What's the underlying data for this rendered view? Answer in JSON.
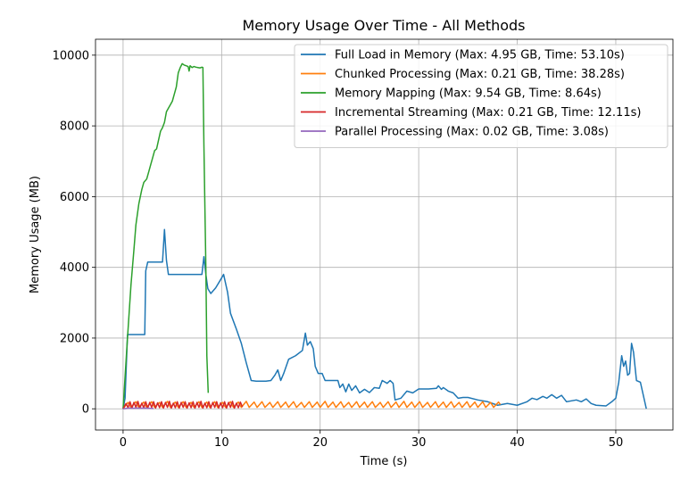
{
  "chart_data": {
    "type": "line",
    "title": "Memory Usage Over Time - All Methods",
    "xlabel": "Time (s)",
    "ylabel": "Memory Usage (MB)",
    "xlim": [
      -2.8,
      55.8
    ],
    "ylim": [
      -600,
      10450
    ],
    "xticks": [
      0,
      10,
      20,
      30,
      40,
      50
    ],
    "yticks": [
      0,
      2000,
      4000,
      6000,
      8000,
      10000
    ],
    "grid": true,
    "legend_position": "top-right",
    "series": [
      {
        "name": "Full Load in Memory (Max: 4.95 GB, Time: 53.10s)",
        "color": "#1f77b4",
        "points": [
          [
            0,
            0
          ],
          [
            0.2,
            300
          ],
          [
            0.45,
            2100
          ],
          [
            1,
            2100
          ],
          [
            2.2,
            2100
          ],
          [
            2.3,
            3900
          ],
          [
            2.5,
            4150
          ],
          [
            3.5,
            4150
          ],
          [
            4.0,
            4150
          ],
          [
            4.2,
            5070
          ],
          [
            4.4,
            4200
          ],
          [
            4.6,
            3800
          ],
          [
            6,
            3800
          ],
          [
            8,
            3800
          ],
          [
            8.2,
            4300
          ],
          [
            8.4,
            3800
          ],
          [
            8.6,
            3400
          ],
          [
            8.9,
            3260
          ],
          [
            9.4,
            3420
          ],
          [
            10.0,
            3700
          ],
          [
            10.2,
            3800
          ],
          [
            10.6,
            3300
          ],
          [
            10.9,
            2700
          ],
          [
            11.5,
            2250
          ],
          [
            12.0,
            1850
          ],
          [
            12.5,
            1300
          ],
          [
            13.0,
            800
          ],
          [
            13.5,
            780
          ],
          [
            14.5,
            780
          ],
          [
            15.0,
            800
          ],
          [
            15.4,
            950
          ],
          [
            15.7,
            1100
          ],
          [
            16.0,
            800
          ],
          [
            16.3,
            1000
          ],
          [
            16.8,
            1400
          ],
          [
            17.5,
            1500
          ],
          [
            18.2,
            1650
          ],
          [
            18.5,
            2140
          ],
          [
            18.7,
            1800
          ],
          [
            19.0,
            1900
          ],
          [
            19.3,
            1700
          ],
          [
            19.5,
            1200
          ],
          [
            19.8,
            1000
          ],
          [
            20.2,
            1000
          ],
          [
            20.5,
            800
          ],
          [
            21.2,
            800
          ],
          [
            21.8,
            800
          ],
          [
            22.0,
            600
          ],
          [
            22.3,
            700
          ],
          [
            22.6,
            480
          ],
          [
            22.9,
            700
          ],
          [
            23.2,
            520
          ],
          [
            23.6,
            650
          ],
          [
            24.0,
            450
          ],
          [
            24.5,
            550
          ],
          [
            25.0,
            460
          ],
          [
            25.5,
            600
          ],
          [
            26.0,
            580
          ],
          [
            26.3,
            800
          ],
          [
            26.8,
            720
          ],
          [
            27.1,
            800
          ],
          [
            27.4,
            720
          ],
          [
            27.6,
            250
          ],
          [
            28.2,
            300
          ],
          [
            28.8,
            500
          ],
          [
            29.4,
            450
          ],
          [
            30.0,
            560
          ],
          [
            31.0,
            560
          ],
          [
            31.8,
            580
          ],
          [
            32.0,
            650
          ],
          [
            32.3,
            550
          ],
          [
            32.5,
            600
          ],
          [
            33.0,
            500
          ],
          [
            33.5,
            450
          ],
          [
            34.0,
            300
          ],
          [
            34.5,
            320
          ],
          [
            35.0,
            320
          ],
          [
            36.0,
            250
          ],
          [
            37.0,
            200
          ],
          [
            38.0,
            100
          ],
          [
            39.0,
            150
          ],
          [
            40.0,
            100
          ],
          [
            41.0,
            200
          ],
          [
            41.5,
            300
          ],
          [
            42.0,
            260
          ],
          [
            42.6,
            350
          ],
          [
            43.0,
            300
          ],
          [
            43.5,
            400
          ],
          [
            44.0,
            300
          ],
          [
            44.5,
            380
          ],
          [
            45.0,
            200
          ],
          [
            46.0,
            250
          ],
          [
            46.5,
            200
          ],
          [
            47.0,
            280
          ],
          [
            47.5,
            150
          ],
          [
            48.0,
            100
          ],
          [
            49.0,
            80
          ],
          [
            49.6,
            200
          ],
          [
            50.0,
            300
          ],
          [
            50.3,
            750
          ],
          [
            50.6,
            1500
          ],
          [
            50.8,
            1200
          ],
          [
            51.0,
            1350
          ],
          [
            51.2,
            950
          ],
          [
            51.4,
            1000
          ],
          [
            51.6,
            1850
          ],
          [
            51.8,
            1600
          ],
          [
            52.1,
            800
          ],
          [
            52.5,
            750
          ],
          [
            53.1,
            0
          ]
        ]
      },
      {
        "name": "Chunked Processing (Max: 0.21 GB, Time: 38.28s)",
        "color": "#ff7f0e",
        "points": [
          [
            0,
            0
          ],
          [
            0.5,
            180
          ],
          [
            0.8,
            40
          ],
          [
            1.3,
            200
          ],
          [
            1.6,
            40
          ],
          [
            2.1,
            190
          ],
          [
            2.4,
            40
          ],
          [
            2.9,
            200
          ],
          [
            3.2,
            40
          ],
          [
            3.7,
            180
          ],
          [
            4.0,
            40
          ],
          [
            4.5,
            210
          ],
          [
            4.8,
            40
          ],
          [
            5.3,
            190
          ],
          [
            5.6,
            40
          ],
          [
            6.1,
            200
          ],
          [
            6.4,
            40
          ],
          [
            6.9,
            180
          ],
          [
            7.2,
            40
          ],
          [
            7.7,
            200
          ],
          [
            8.0,
            40
          ],
          [
            8.5,
            190
          ],
          [
            8.8,
            40
          ],
          [
            9.3,
            200
          ],
          [
            9.6,
            40
          ],
          [
            10.1,
            180
          ],
          [
            10.4,
            40
          ],
          [
            10.9,
            200
          ],
          [
            11.2,
            40
          ],
          [
            11.7,
            190
          ],
          [
            12.0,
            40
          ],
          [
            12.5,
            210
          ],
          [
            12.8,
            40
          ],
          [
            13.3,
            190
          ],
          [
            13.6,
            40
          ],
          [
            14.1,
            200
          ],
          [
            14.4,
            40
          ],
          [
            14.9,
            180
          ],
          [
            15.2,
            40
          ],
          [
            15.7,
            200
          ],
          [
            16.0,
            40
          ],
          [
            16.5,
            190
          ],
          [
            16.8,
            40
          ],
          [
            17.3,
            200
          ],
          [
            17.6,
            40
          ],
          [
            18.1,
            180
          ],
          [
            18.4,
            40
          ],
          [
            18.9,
            200
          ],
          [
            19.2,
            40
          ],
          [
            19.7,
            190
          ],
          [
            20.0,
            40
          ],
          [
            20.5,
            210
          ],
          [
            20.8,
            40
          ],
          [
            21.3,
            190
          ],
          [
            21.6,
            40
          ],
          [
            22.1,
            200
          ],
          [
            22.4,
            40
          ],
          [
            22.9,
            180
          ],
          [
            23.2,
            40
          ],
          [
            23.7,
            200
          ],
          [
            24.0,
            40
          ],
          [
            24.5,
            190
          ],
          [
            24.8,
            40
          ],
          [
            25.3,
            200
          ],
          [
            25.6,
            40
          ],
          [
            26.1,
            180
          ],
          [
            26.4,
            40
          ],
          [
            26.9,
            200
          ],
          [
            27.2,
            40
          ],
          [
            27.7,
            190
          ],
          [
            28.0,
            40
          ],
          [
            28.5,
            210
          ],
          [
            28.8,
            40
          ],
          [
            29.3,
            190
          ],
          [
            29.6,
            40
          ],
          [
            30.1,
            200
          ],
          [
            30.4,
            40
          ],
          [
            30.9,
            180
          ],
          [
            31.2,
            40
          ],
          [
            31.7,
            200
          ],
          [
            32.0,
            40
          ],
          [
            32.5,
            190
          ],
          [
            32.8,
            40
          ],
          [
            33.3,
            200
          ],
          [
            33.6,
            40
          ],
          [
            34.1,
            180
          ],
          [
            34.4,
            40
          ],
          [
            34.9,
            200
          ],
          [
            35.2,
            40
          ],
          [
            35.7,
            190
          ],
          [
            36.0,
            40
          ],
          [
            36.5,
            200
          ],
          [
            36.8,
            40
          ],
          [
            37.3,
            180
          ],
          [
            37.6,
            40
          ],
          [
            38.1,
            190
          ],
          [
            38.28,
            120
          ]
        ]
      },
      {
        "name": "Memory Mapping (Max: 9.54 GB, Time: 8.64s)",
        "color": "#2ca02c",
        "points": [
          [
            0,
            0
          ],
          [
            0.4,
            1800
          ],
          [
            0.8,
            3500
          ],
          [
            1.1,
            4500
          ],
          [
            1.3,
            5200
          ],
          [
            1.6,
            5800
          ],
          [
            1.9,
            6200
          ],
          [
            2.1,
            6400
          ],
          [
            2.4,
            6500
          ],
          [
            2.6,
            6700
          ],
          [
            2.8,
            6900
          ],
          [
            3.0,
            7100
          ],
          [
            3.2,
            7300
          ],
          [
            3.4,
            7350
          ],
          [
            3.6,
            7600
          ],
          [
            3.8,
            7850
          ],
          [
            4.0,
            7950
          ],
          [
            4.2,
            8100
          ],
          [
            4.4,
            8400
          ],
          [
            4.6,
            8500
          ],
          [
            4.8,
            8600
          ],
          [
            5.0,
            8700
          ],
          [
            5.2,
            8900
          ],
          [
            5.4,
            9100
          ],
          [
            5.6,
            9500
          ],
          [
            5.8,
            9650
          ],
          [
            6.0,
            9760
          ],
          [
            6.2,
            9720
          ],
          [
            6.4,
            9700
          ],
          [
            6.6,
            9680
          ],
          [
            6.7,
            9550
          ],
          [
            6.8,
            9700
          ],
          [
            7.0,
            9650
          ],
          [
            7.2,
            9680
          ],
          [
            7.4,
            9660
          ],
          [
            7.6,
            9650
          ],
          [
            7.8,
            9640
          ],
          [
            8.0,
            9660
          ],
          [
            8.1,
            9650
          ],
          [
            8.2,
            7500
          ],
          [
            8.4,
            4000
          ],
          [
            8.5,
            1500
          ],
          [
            8.64,
            450
          ]
        ]
      },
      {
        "name": "Incremental Streaming (Max: 0.21 GB, Time: 12.11s)",
        "color": "#d62728",
        "points": [
          [
            0,
            0
          ],
          [
            0.3,
            150
          ],
          [
            0.5,
            30
          ],
          [
            0.7,
            200
          ],
          [
            0.9,
            20
          ],
          [
            1.1,
            180
          ],
          [
            1.3,
            40
          ],
          [
            1.5,
            210
          ],
          [
            1.7,
            20
          ],
          [
            1.9,
            160
          ],
          [
            2.1,
            30
          ],
          [
            2.3,
            200
          ],
          [
            2.5,
            20
          ],
          [
            2.7,
            180
          ],
          [
            2.9,
            40
          ],
          [
            3.1,
            200
          ],
          [
            3.3,
            20
          ],
          [
            3.5,
            170
          ],
          [
            3.7,
            30
          ],
          [
            3.9,
            200
          ],
          [
            4.1,
            20
          ],
          [
            4.3,
            180
          ],
          [
            4.5,
            40
          ],
          [
            4.7,
            210
          ],
          [
            4.9,
            20
          ],
          [
            5.1,
            160
          ],
          [
            5.3,
            30
          ],
          [
            5.5,
            200
          ],
          [
            5.7,
            20
          ],
          [
            5.9,
            180
          ],
          [
            6.1,
            40
          ],
          [
            6.3,
            200
          ],
          [
            6.5,
            20
          ],
          [
            6.7,
            170
          ],
          [
            6.9,
            30
          ],
          [
            7.1,
            200
          ],
          [
            7.3,
            20
          ],
          [
            7.5,
            180
          ],
          [
            7.7,
            40
          ],
          [
            7.9,
            210
          ],
          [
            8.1,
            20
          ],
          [
            8.3,
            160
          ],
          [
            8.5,
            30
          ],
          [
            8.7,
            200
          ],
          [
            8.9,
            20
          ],
          [
            9.1,
            180
          ],
          [
            9.3,
            40
          ],
          [
            9.5,
            200
          ],
          [
            9.7,
            20
          ],
          [
            9.9,
            170
          ],
          [
            10.1,
            30
          ],
          [
            10.3,
            200
          ],
          [
            10.5,
            20
          ],
          [
            10.7,
            180
          ],
          [
            10.9,
            40
          ],
          [
            11.1,
            210
          ],
          [
            11.3,
            20
          ],
          [
            11.5,
            160
          ],
          [
            11.7,
            30
          ],
          [
            11.9,
            190
          ],
          [
            12.11,
            50
          ]
        ]
      },
      {
        "name": "Parallel Processing (Max: 0.02 GB, Time: 3.08s)",
        "color": "#9467bd",
        "points": [
          [
            0,
            0
          ],
          [
            0.3,
            10
          ],
          [
            0.6,
            20
          ],
          [
            1.0,
            15
          ],
          [
            1.4,
            20
          ],
          [
            1.8,
            18
          ],
          [
            2.2,
            20
          ],
          [
            2.6,
            15
          ],
          [
            3.08,
            10
          ]
        ]
      }
    ]
  }
}
